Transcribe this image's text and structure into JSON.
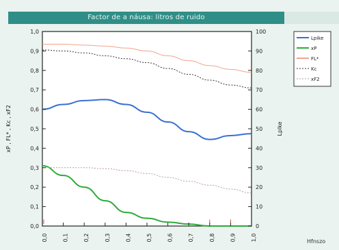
{
  "chart_data": {
    "type": "line",
    "title": "Factor de a náusa: litros de ruido",
    "xlabel": "",
    "ylabel_left": "xP , FL* , Kc , xF2",
    "ylabel_right": "Lplke",
    "footer": "Hfnszo",
    "x_ticks": [
      "0,0",
      "0,1",
      "0,2",
      "0,3",
      "0,4",
      "0,5",
      "0,6",
      "0,7",
      "0,8",
      "0,9",
      "1,0"
    ],
    "y_left_ticks": [
      "0,0",
      "0,1",
      "0,2",
      "0,3",
      "0,4",
      "0,5",
      "0,6",
      "0,7",
      "0,8",
      "0,9",
      "1,0"
    ],
    "y_right_ticks": [
      "0",
      "10",
      "20",
      "30",
      "40",
      "50",
      "60",
      "70",
      "80",
      "90",
      "100"
    ],
    "xlim": [
      0,
      1
    ],
    "ylim_left": [
      0,
      1
    ],
    "ylim_right": [
      0,
      100
    ],
    "grid": false,
    "legend_position": "right",
    "series": [
      {
        "name": "Lpike",
        "axis": "right",
        "color": "#3a6fd0",
        "style": "solid",
        "width": 2,
        "x": [
          0,
          0.1,
          0.2,
          0.3,
          0.4,
          0.5,
          0.6,
          0.7,
          0.8,
          0.9,
          1.0
        ],
        "y": [
          60,
          62.5,
          64.5,
          65,
          62.5,
          58.5,
          53.5,
          48.5,
          44.5,
          46.5,
          47.5
        ]
      },
      {
        "name": "xP",
        "axis": "left",
        "color": "#2eaa3a",
        "style": "solid",
        "width": 2,
        "x": [
          0,
          0.1,
          0.2,
          0.3,
          0.4,
          0.5,
          0.6,
          0.7,
          0.8,
          0.9,
          1.0
        ],
        "y": [
          0.31,
          0.26,
          0.2,
          0.13,
          0.07,
          0.04,
          0.02,
          0.01,
          0.0,
          0.0,
          0.0
        ]
      },
      {
        "name": "FL*",
        "axis": "left",
        "color": "#f2a38b",
        "style": "solid",
        "width": 1,
        "x": [
          0,
          0.1,
          0.2,
          0.3,
          0.4,
          0.5,
          0.6,
          0.7,
          0.8,
          0.9,
          1.0
        ],
        "y": [
          0.935,
          0.935,
          0.93,
          0.925,
          0.915,
          0.9,
          0.875,
          0.85,
          0.825,
          0.805,
          0.79
        ]
      },
      {
        "name": "Kc",
        "axis": "left",
        "color": "#333333",
        "style": "dotted",
        "width": 1,
        "x": [
          0,
          0.1,
          0.2,
          0.3,
          0.4,
          0.5,
          0.6,
          0.7,
          0.8,
          0.9,
          1.0
        ],
        "y": [
          0.905,
          0.9,
          0.89,
          0.875,
          0.86,
          0.84,
          0.81,
          0.78,
          0.75,
          0.725,
          0.71
        ]
      },
      {
        "name": "xF2",
        "axis": "left",
        "color": "#b89a9a",
        "style": "dotted",
        "width": 1,
        "x": [
          0,
          0.1,
          0.2,
          0.3,
          0.4,
          0.5,
          0.6,
          0.7,
          0.8,
          0.9,
          1.0
        ],
        "y": [
          0.3,
          0.3,
          0.3,
          0.295,
          0.285,
          0.27,
          0.25,
          0.23,
          0.21,
          0.19,
          0.17
        ]
      }
    ],
    "legend": [
      {
        "label": "Lpike",
        "color": "#3a6fd0",
        "style": "solid"
      },
      {
        "label": "xP",
        "color": "#2eaa3a",
        "style": "solid"
      },
      {
        "label": "FL*",
        "color": "#f2a38b",
        "style": "solid"
      },
      {
        "label": "Kc",
        "color": "#333333",
        "style": "dotted"
      },
      {
        "label": "xF2",
        "color": "#b89a9a",
        "style": "dotted"
      }
    ],
    "annotations": [
      "I",
      "I",
      "I"
    ],
    "colors": {
      "title_bar": "#2f8f88",
      "panel": "#eaf3ef",
      "plot_bg": "#ffffff",
      "marker": "#d04020"
    }
  }
}
